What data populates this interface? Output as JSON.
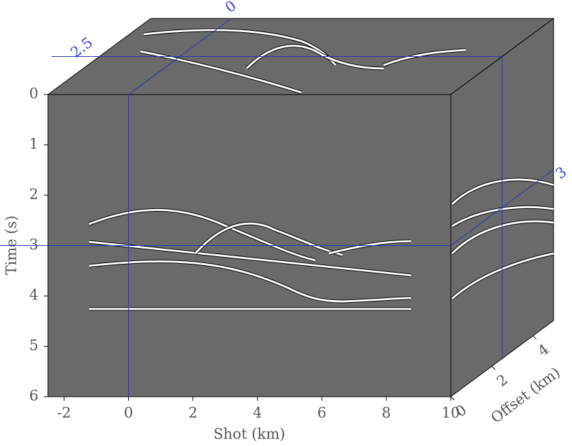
{
  "chart_data": {
    "type": "cube",
    "xlabel": "Shot (km)",
    "ylabel": "Time (s)",
    "zlabel": "Offset (km)",
    "xlim": [
      -2.5,
      10
    ],
    "xticks": [
      -2,
      0,
      2,
      4,
      6,
      8,
      10
    ],
    "ylim": [
      0,
      6
    ],
    "yticks": [
      0,
      1,
      2,
      3,
      4,
      5,
      6
    ],
    "zlim": [
      0,
      5
    ],
    "zticks": [
      0,
      2,
      4
    ],
    "slice": {
      "x": 0,
      "y": 3,
      "z": 2.5
    },
    "face_color": "#6a6a6a",
    "slice_color": "#2233bb"
  }
}
